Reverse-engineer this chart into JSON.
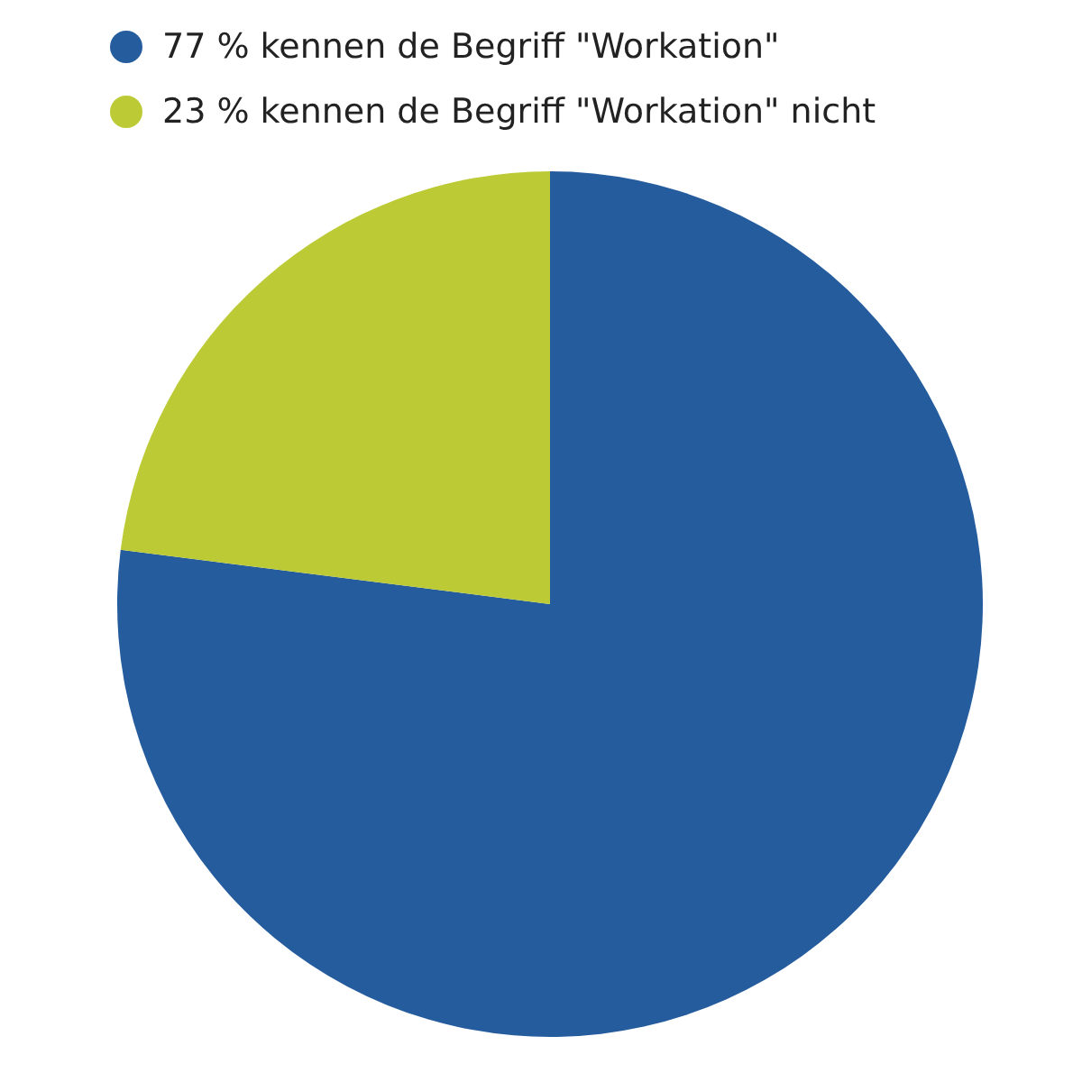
{
  "chart_data": {
    "type": "pie",
    "categories": [
      "77 % kennen de Begriff \"Workation\"",
      "23 % kennen de Begriff \"Workation\" nicht"
    ],
    "values": [
      77,
      23
    ],
    "colors": [
      "#245c9e",
      "#bccb35"
    ],
    "legend": "top left"
  }
}
